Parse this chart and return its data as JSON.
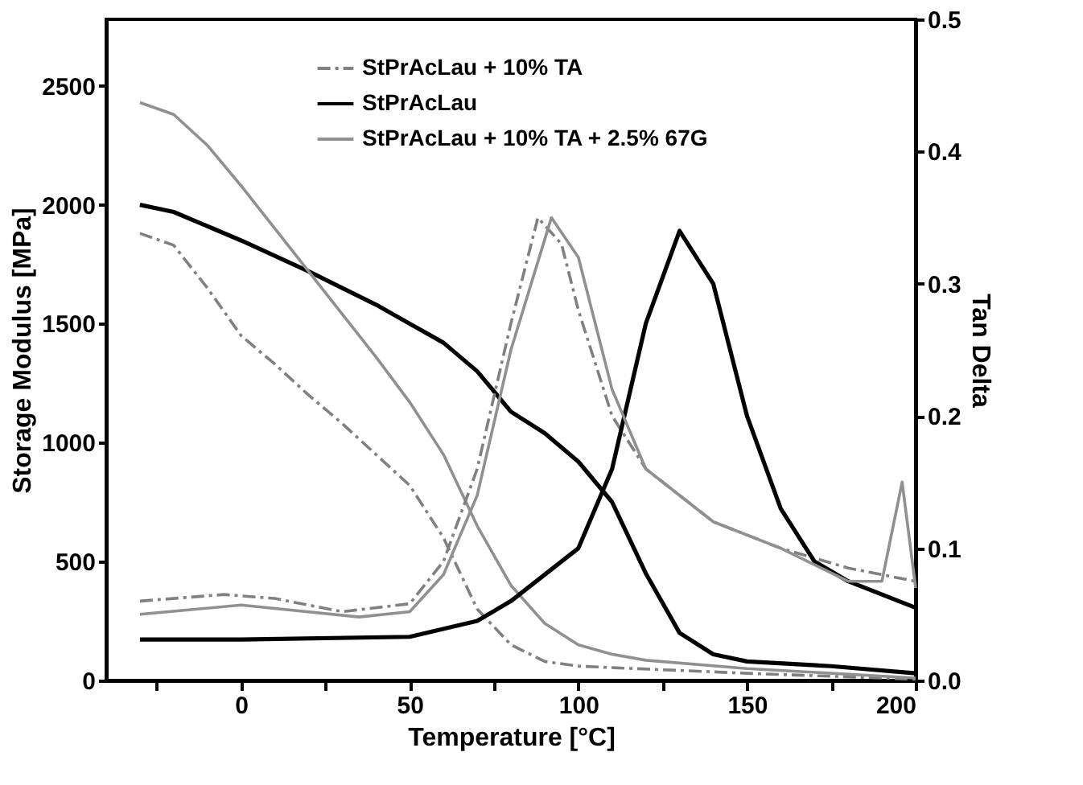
{
  "chart_data": {
    "type": "line",
    "xlabel": "Temperature [°C]",
    "ylabel": "Storage Modulus [MPa]",
    "y2label": "Tan Delta",
    "xlim": [
      -40,
      200
    ],
    "xticks": [
      {
        "value": -25,
        "label": null
      },
      0,
      {
        "value": 25,
        "label": null
      },
      50,
      {
        "value": 75,
        "label": null
      },
      100,
      {
        "value": 125,
        "label": null
      },
      150,
      {
        "value": 175,
        "label": null
      },
      200
    ],
    "ylim": [
      0,
      2780
    ],
    "yticks": [
      0,
      500,
      1000,
      1500,
      2000,
      2500
    ],
    "y2lim": [
      0,
      0.5
    ],
    "y2ticks": [
      {
        "value": 0,
        "label": "0.0"
      },
      0.1,
      0.2,
      0.3,
      0.4,
      0.5
    ],
    "grid": false,
    "legend": "top",
    "series": [
      {
        "name": "StPrAcLau + 10% TA",
        "color": "#808080",
        "line_style": "dashed",
        "x": [
          -30,
          -20,
          -10,
          0,
          10,
          20,
          30,
          40,
          50,
          60,
          70,
          80,
          90,
          100,
          150,
          200
        ],
        "values": [
          1880,
          1830,
          1650,
          1450,
          1330,
          1200,
          1080,
          950,
          820,
          600,
          300,
          150,
          80,
          60,
          30,
          5
        ]
      },
      {
        "name": "StPrAcLau",
        "color": "#000000",
        "line_style": "solid",
        "x": [
          -30,
          -20,
          0,
          20,
          40,
          50,
          60,
          70,
          80,
          90,
          100,
          110,
          120,
          130,
          140,
          150,
          175,
          200
        ],
        "values": [
          2000,
          1970,
          1850,
          1720,
          1580,
          1500,
          1420,
          1300,
          1130,
          1040,
          920,
          750,
          450,
          200,
          110,
          80,
          60,
          30
        ]
      },
      {
        "name": "StPrAcLau + 10% TA + 2.5% 67G",
        "color": "#909090",
        "line_style": "solid",
        "x": [
          -30,
          -20,
          -10,
          0,
          10,
          20,
          30,
          40,
          50,
          60,
          70,
          80,
          90,
          100,
          110,
          120,
          150,
          200
        ],
        "values": [
          2430,
          2380,
          2250,
          2080,
          1900,
          1720,
          1540,
          1360,
          1170,
          950,
          650,
          400,
          240,
          150,
          110,
          85,
          50,
          10
        ]
      },
      {
        "color": "#808080",
        "line_style": "dashed",
        "axis": "y2",
        "x": [
          -30,
          -5,
          10,
          30,
          50,
          60,
          70,
          80,
          88,
          95,
          100,
          110,
          120,
          140,
          160,
          180,
          200
        ],
        "values": [
          0.06,
          0.065,
          0.062,
          0.052,
          0.058,
          0.09,
          0.16,
          0.27,
          0.35,
          0.33,
          0.28,
          0.2,
          0.16,
          0.12,
          0.1,
          0.085,
          0.075
        ]
      },
      {
        "color": "#000000",
        "line_style": "solid",
        "axis": "y2",
        "x": [
          -30,
          0,
          50,
          70,
          80,
          100,
          110,
          120,
          130,
          140,
          150,
          160,
          170,
          180,
          190,
          200
        ],
        "values": [
          0.031,
          0.031,
          0.033,
          0.045,
          0.06,
          0.1,
          0.16,
          0.27,
          0.34,
          0.3,
          0.2,
          0.13,
          0.09,
          0.075,
          0.065,
          0.055
        ]
      },
      {
        "color": "#909090",
        "line_style": "solid",
        "axis": "y2",
        "x": [
          -30,
          0,
          35,
          50,
          60,
          70,
          80,
          92,
          100,
          110,
          120,
          140,
          160,
          180,
          190,
          196,
          200
        ],
        "values": [
          0.05,
          0.057,
          0.048,
          0.052,
          0.08,
          0.14,
          0.25,
          0.35,
          0.32,
          0.22,
          0.16,
          0.12,
          0.1,
          0.075,
          0.075,
          0.15,
          0.07
        ]
      }
    ]
  }
}
